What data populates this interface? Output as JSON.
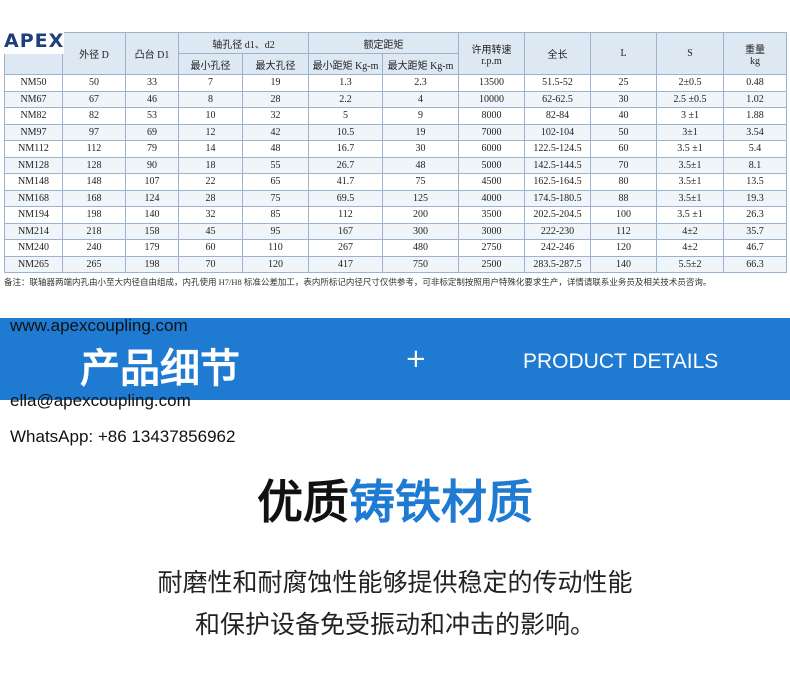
{
  "logo": "APEX",
  "table": {
    "headers": [
      {
        "label": "外径 D"
      },
      {
        "label": "凸台 D1"
      },
      {
        "label": "轴孔径 d1、d2",
        "sub": [
          "最小孔径",
          "最大孔径"
        ]
      },
      {
        "label": "额定距矩",
        "sub": [
          "最小距矩 Kg-m",
          "最大距矩 Kg-m"
        ]
      },
      {
        "label": "许用转速",
        "unit": "r.p.m"
      },
      {
        "label": "全长"
      },
      {
        "label": "L"
      },
      {
        "label": "S"
      },
      {
        "label": "重量",
        "unit": "kg"
      }
    ],
    "rows": [
      [
        "NM50",
        "50",
        "33",
        "7",
        "19",
        "1.3",
        "2.3",
        "13500",
        "51.5-52",
        "25",
        "2±0.5",
        "0.48"
      ],
      [
        "NM67",
        "67",
        "46",
        "8",
        "28",
        "2.2",
        "4",
        "10000",
        "62-62.5",
        "30",
        "2.5 ±0.5",
        "1.02"
      ],
      [
        "NM82",
        "82",
        "53",
        "10",
        "32",
        "5",
        "9",
        "8000",
        "82-84",
        "40",
        "3 ±1",
        "1.88"
      ],
      [
        "NM97",
        "97",
        "69",
        "12",
        "42",
        "10.5",
        "19",
        "7000",
        "102-104",
        "50",
        "3±1",
        "3.54"
      ],
      [
        "NM112",
        "112",
        "79",
        "14",
        "48",
        "16.7",
        "30",
        "6000",
        "122.5-124.5",
        "60",
        "3.5 ±1",
        "5.4"
      ],
      [
        "NM128",
        "128",
        "90",
        "18",
        "55",
        "26.7",
        "48",
        "5000",
        "142.5-144.5",
        "70",
        "3.5±1",
        "8.1"
      ],
      [
        "NM148",
        "148",
        "107",
        "22",
        "65",
        "41.7",
        "75",
        "4500",
        "162.5-164.5",
        "80",
        "3.5±1",
        "13.5"
      ],
      [
        "NM168",
        "168",
        "124",
        "28",
        "75",
        "69.5",
        "125",
        "4000",
        "174.5-180.5",
        "88",
        "3.5±1",
        "19.3"
      ],
      [
        "NM194",
        "198",
        "140",
        "32",
        "85",
        "112",
        "200",
        "3500",
        "202.5-204.5",
        "100",
        "3.5 ±1",
        "26.3"
      ],
      [
        "NM214",
        "218",
        "158",
        "45",
        "95",
        "167",
        "300",
        "3000",
        "222-230",
        "112",
        "4±2",
        "35.7"
      ],
      [
        "NM240",
        "240",
        "179",
        "60",
        "110",
        "267",
        "480",
        "2750",
        "242-246",
        "120",
        "4±2",
        "46.7"
      ],
      [
        "NM265",
        "265",
        "198",
        "70",
        "120",
        "417",
        "750",
        "2500",
        "283.5-287.5",
        "140",
        "5.5±2",
        "66.3"
      ]
    ],
    "note": "备注：联轴器两端内孔由小至大内径自由组成，内孔使用 H7/H8 标准公差加工，表内所标记内径尺寸仅供参考，可非标定制按照用户特殊化要求生产，详情请联系业务员及相关技术员咨询。"
  },
  "banner": {
    "title_cn": "产品细节",
    "plus": "+",
    "title_en": "PRODUCT DETAILS"
  },
  "contact": {
    "website": "www.apexcoupling.com",
    "email": "ella@apexcoupling.com",
    "whatsapp": "WhatsApp: +86 13437856962"
  },
  "section": {
    "heading_black": "优质",
    "heading_blue": "铸铁材质",
    "lines": [
      "耐磨性和耐腐蚀性能够提供稳定的传动性能",
      "和保护设备免受振动和冲击的影响。"
    ]
  }
}
